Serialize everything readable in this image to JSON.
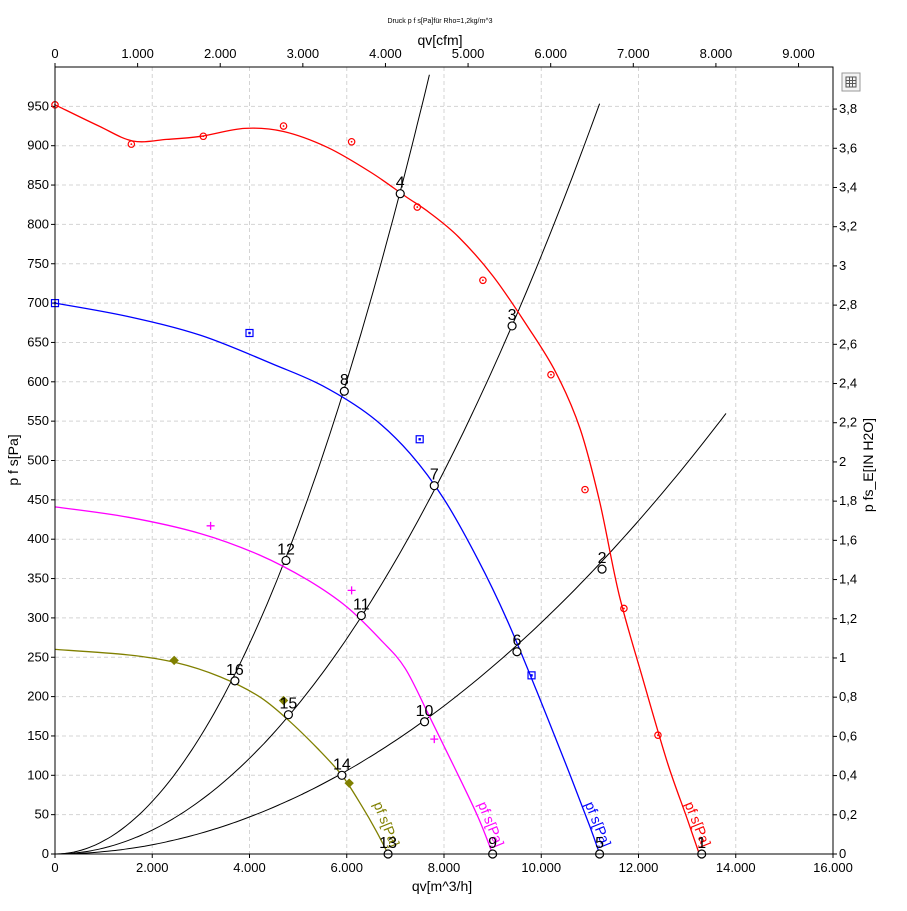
{
  "chart_data": {
    "type": "line",
    "title": "Druck p f s[Pa]für Rho=1,2kg/m^3",
    "xlabel_bottom": "qv[m^3/h]",
    "xlabel_top": "qv[cfm]",
    "ylabel_left": "p f s[Pa]",
    "ylabel_right": "p fs_E[IN H2O]",
    "xlim": [
      0,
      16000
    ],
    "ylim": [
      0,
      1000
    ],
    "grid": true,
    "x_ticks_bottom": [
      {
        "v": 0,
        "label": "0"
      },
      {
        "v": 2000,
        "label": "2.000"
      },
      {
        "v": 4000,
        "label": "4.000"
      },
      {
        "v": 6000,
        "label": "6.000"
      },
      {
        "v": 8000,
        "label": "8.000"
      },
      {
        "v": 10000,
        "label": "10.000"
      },
      {
        "v": 12000,
        "label": "12.000"
      },
      {
        "v": 14000,
        "label": "14.000"
      },
      {
        "v": 16000,
        "label": "16.000"
      }
    ],
    "x_ticks_top": [
      {
        "v": 0,
        "label": "0"
      },
      {
        "v": 1000,
        "label": "1.000"
      },
      {
        "v": 2000,
        "label": "2.000"
      },
      {
        "v": 3000,
        "label": "3.000"
      },
      {
        "v": 4000,
        "label": "4.000"
      },
      {
        "v": 5000,
        "label": "5.000"
      },
      {
        "v": 6000,
        "label": "6.000"
      },
      {
        "v": 7000,
        "label": "7.000"
      },
      {
        "v": 8000,
        "label": "8.000"
      },
      {
        "v": 9000,
        "label": "9.000"
      }
    ],
    "y_ticks_left": [
      {
        "v": 0,
        "label": "0"
      },
      {
        "v": 50,
        "label": "50"
      },
      {
        "v": 100,
        "label": "100"
      },
      {
        "v": 150,
        "label": "150"
      },
      {
        "v": 200,
        "label": "200"
      },
      {
        "v": 250,
        "label": "250"
      },
      {
        "v": 300,
        "label": "300"
      },
      {
        "v": 350,
        "label": "350"
      },
      {
        "v": 400,
        "label": "400"
      },
      {
        "v": 450,
        "label": "450"
      },
      {
        "v": 500,
        "label": "500"
      },
      {
        "v": 550,
        "label": "550"
      },
      {
        "v": 600,
        "label": "600"
      },
      {
        "v": 650,
        "label": "650"
      },
      {
        "v": 700,
        "label": "700"
      },
      {
        "v": 750,
        "label": "750"
      },
      {
        "v": 800,
        "label": "800"
      },
      {
        "v": 850,
        "label": "850"
      },
      {
        "v": 900,
        "label": "900"
      },
      {
        "v": 950,
        "label": "950"
      }
    ],
    "y_ticks_right": [
      {
        "v": 0,
        "label": "0"
      },
      {
        "v": 0.2,
        "label": "0,2"
      },
      {
        "v": 0.4,
        "label": "0,4"
      },
      {
        "v": 0.6,
        "label": "0,6"
      },
      {
        "v": 0.8,
        "label": "0,8"
      },
      {
        "v": 1,
        "label": "1"
      },
      {
        "v": 1.2,
        "label": "1,2"
      },
      {
        "v": 1.4,
        "label": "1,4"
      },
      {
        "v": 1.6,
        "label": "1,6"
      },
      {
        "v": 1.8,
        "label": "1,8"
      },
      {
        "v": 2,
        "label": "2"
      },
      {
        "v": 2.2,
        "label": "2,2"
      },
      {
        "v": 2.4,
        "label": "2,4"
      },
      {
        "v": 2.6,
        "label": "2,6"
      },
      {
        "v": 2.8,
        "label": "2,8"
      },
      {
        "v": 3,
        "label": "3"
      },
      {
        "v": 3.2,
        "label": "3,2"
      },
      {
        "v": 3.4,
        "label": "3,4"
      },
      {
        "v": 3.6,
        "label": "3,6"
      },
      {
        "v": 3.8,
        "label": "3,8"
      }
    ],
    "series": [
      {
        "name": "pf s[Pa]",
        "color": "#ff0000",
        "marker": "circle",
        "curve": [
          [
            0,
            952
          ],
          [
            900,
            925
          ],
          [
            1600,
            906
          ],
          [
            2300,
            908
          ],
          [
            3000,
            912
          ],
          [
            3900,
            922
          ],
          [
            4700,
            918
          ],
          [
            5600,
            898
          ],
          [
            6500,
            866
          ],
          [
            7200,
            836
          ],
          [
            7700,
            815
          ],
          [
            8300,
            784
          ],
          [
            9000,
            735
          ],
          [
            9700,
            672
          ],
          [
            10300,
            612
          ],
          [
            10800,
            540
          ],
          [
            11200,
            448
          ],
          [
            11600,
            330
          ],
          [
            12100,
            220
          ],
          [
            12600,
            115
          ],
          [
            13000,
            45
          ],
          [
            13250,
            0
          ]
        ],
        "markers": [
          [
            0,
            952
          ],
          [
            1570,
            902
          ],
          [
            3050,
            912
          ],
          [
            4700,
            925
          ],
          [
            6100,
            905
          ],
          [
            7450,
            822
          ],
          [
            8800,
            729
          ],
          [
            10200,
            609
          ],
          [
            10900,
            463
          ],
          [
            11700,
            312
          ],
          [
            12400,
            151
          ]
        ]
      },
      {
        "name": "pf s[Pa]",
        "color": "#0000ff",
        "marker": "square",
        "curve": [
          [
            0,
            700
          ],
          [
            1500,
            683
          ],
          [
            3000,
            659
          ],
          [
            4500,
            622
          ],
          [
            5500,
            595
          ],
          [
            6500,
            556
          ],
          [
            7300,
            509
          ],
          [
            8000,
            451
          ],
          [
            8700,
            374
          ],
          [
            9300,
            297
          ],
          [
            9900,
            208
          ],
          [
            10500,
            115
          ],
          [
            11000,
            35
          ],
          [
            11200,
            0
          ]
        ],
        "markers": [
          [
            0,
            700
          ],
          [
            4000,
            662
          ],
          [
            7500,
            527
          ],
          [
            9800,
            227
          ]
        ]
      },
      {
        "name": "pf s[Pa]",
        "color": "#ff00ff",
        "marker": "plus",
        "curve": [
          [
            0,
            441
          ],
          [
            1500,
            428
          ],
          [
            3000,
            407
          ],
          [
            4200,
            380
          ],
          [
            5200,
            348
          ],
          [
            6000,
            314
          ],
          [
            6700,
            272
          ],
          [
            7200,
            236
          ],
          [
            7700,
            175
          ],
          [
            8200,
            112
          ],
          [
            8700,
            47
          ],
          [
            9000,
            0
          ]
        ],
        "markers": [
          [
            3200,
            417
          ],
          [
            6100,
            335
          ],
          [
            7800,
            146
          ]
        ]
      },
      {
        "name": "pf s[Pa]",
        "color": "#808000",
        "marker": "diamond",
        "curve": [
          [
            0,
            260
          ],
          [
            1500,
            253
          ],
          [
            2500,
            243
          ],
          [
            3400,
            225
          ],
          [
            4200,
            200
          ],
          [
            4800,
            170
          ],
          [
            5400,
            134
          ],
          [
            5900,
            100
          ],
          [
            6300,
            62
          ],
          [
            6600,
            30
          ],
          [
            6850,
            0
          ]
        ],
        "markers": [
          [
            2450,
            246
          ],
          [
            4700,
            195
          ],
          [
            6050,
            90
          ]
        ]
      }
    ],
    "system_curves": [
      {
        "k": 1.67e-05,
        "x_end": 7700
      },
      {
        "k": 7.6e-06,
        "x_end": 11200
      },
      {
        "k": 2.94e-06,
        "x_end": 13800
      }
    ],
    "operating_points": [
      {
        "label": "1",
        "x": 13300,
        "y": 0
      },
      {
        "label": "2",
        "x": 11250,
        "y": 362
      },
      {
        "label": "3",
        "x": 9400,
        "y": 671
      },
      {
        "label": "4",
        "x": 7100,
        "y": 839
      },
      {
        "label": "5",
        "x": 11200,
        "y": 0
      },
      {
        "label": "6",
        "x": 9500,
        "y": 257
      },
      {
        "label": "7",
        "x": 7800,
        "y": 468
      },
      {
        "label": "8",
        "x": 5950,
        "y": 588
      },
      {
        "label": "9",
        "x": 9000,
        "y": 0
      },
      {
        "label": "10",
        "x": 7600,
        "y": 168
      },
      {
        "label": "11",
        "x": 6300,
        "y": 303
      },
      {
        "label": "12",
        "x": 4750,
        "y": 373
      },
      {
        "label": "13",
        "x": 6850,
        "y": 0
      },
      {
        "label": "14",
        "x": 5900,
        "y": 100
      },
      {
        "label": "15",
        "x": 4800,
        "y": 177
      },
      {
        "label": "16",
        "x": 3700,
        "y": 220
      }
    ]
  },
  "toolbar": {
    "icon": "grid-table-icon"
  }
}
